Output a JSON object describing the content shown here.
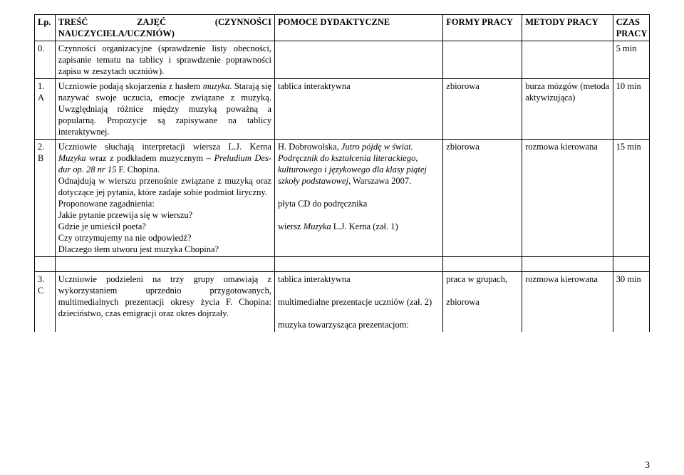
{
  "header": {
    "lp": "Lp.",
    "tresc": "TREŚĆ ZAJĘĆ (CZYNNOŚCI NAUCZYCIELA/UCZNIÓW)",
    "pomoce": "POMOCE DYDAKTYCZNE",
    "formy": "FORMY PRACY",
    "metody": "METODY PRACY",
    "czas": "CZAS PRACY"
  },
  "rows": [
    {
      "lp": "0.",
      "tresc": "Czynności organizacyjne (sprawdzenie listy obecności, zapisanie tematu na tablicy i sprawdzenie poprawności zapisu w zeszytach uczniów).",
      "pomoce": "",
      "formy": "",
      "metody": "",
      "czas": "5 min"
    },
    {
      "lp": "1. A",
      "tresc_a": "Uczniowie podają skojarzenia z hasłem ",
      "tresc_b_it": "muzyka",
      "tresc_c": ". Starają się nazywać swoje uczucia, emocje związane z muzyką. Uwzględniają różnice między muzyką poważną a popularną. Propozycje są zapisywane na tablicy interaktywnej.",
      "pomoce": "tablica interaktywna",
      "formy": "zbiorowa",
      "metody": "burza mózgów (metoda aktywizująca)",
      "czas": "10 min"
    },
    {
      "lp": "2. B",
      "t2_a": "Uczniowie słuchają interpretacji wiersza L.J. Kerna ",
      "t2_b_it": "Muzyka",
      "t2_c": " wraz z podkładem muzycznym – ",
      "t2_d_it": "Preludium Des-dur op. 28 nr 15",
      "t2_e": " F. Chopina.",
      "t2_l2": "Odnajdują w wierszu przenośnie związane z muzyką oraz dotyczące jej pytania, które zadaje sobie podmiot liryczny.",
      "t2_l3": "Proponowane zagadnienia:",
      "t2_l4": "Jakie pytanie przewija się w wierszu?",
      "t2_l5": "Gdzie je umieścił poeta?",
      "t2_l6": "Czy otrzymujemy na nie odpowiedź?",
      "t2_l7": "Dlaczego tłem utworu jest muzyka Chopina?",
      "p2_a": "H. Dobrowolska, ",
      "p2_b_it": "Jutro pójdę w świat. Podręcznik do kształcenia literackiego, kulturowego i językowego dla klasy piątej szkoły podstawowej",
      "p2_c": ", Warszawa 2007.",
      "p2_l2": "płyta CD do podręcznika",
      "p2_l3a": "wiersz ",
      "p2_l3b_it": "Muzyka",
      "p2_l3c": " L.J. Kerna (zał. 1)",
      "formy": "zbiorowa",
      "metody": "rozmowa kierowana",
      "czas": "15 min"
    },
    {
      "lp": "3. C",
      "t3": "Uczniowie podzieleni na trzy grupy omawiają z wykorzystaniem uprzednio przygotowanych, multimedialnych prezentacji okresy życia F. Chopina: dzieciństwo, czas emigracji oraz okres dojrzały.",
      "p3_l1": "tablica interaktywna",
      "p3_l2": "multimedialne prezentacje uczniów (zał. 2)",
      "p3_l3": "muzyka towarzysząca prezentacjom:",
      "formy_l1": "praca w grupach,",
      "formy_l2": "zbiorowa",
      "metody": "rozmowa kierowana",
      "czas": "30 min"
    }
  ],
  "page": "3"
}
